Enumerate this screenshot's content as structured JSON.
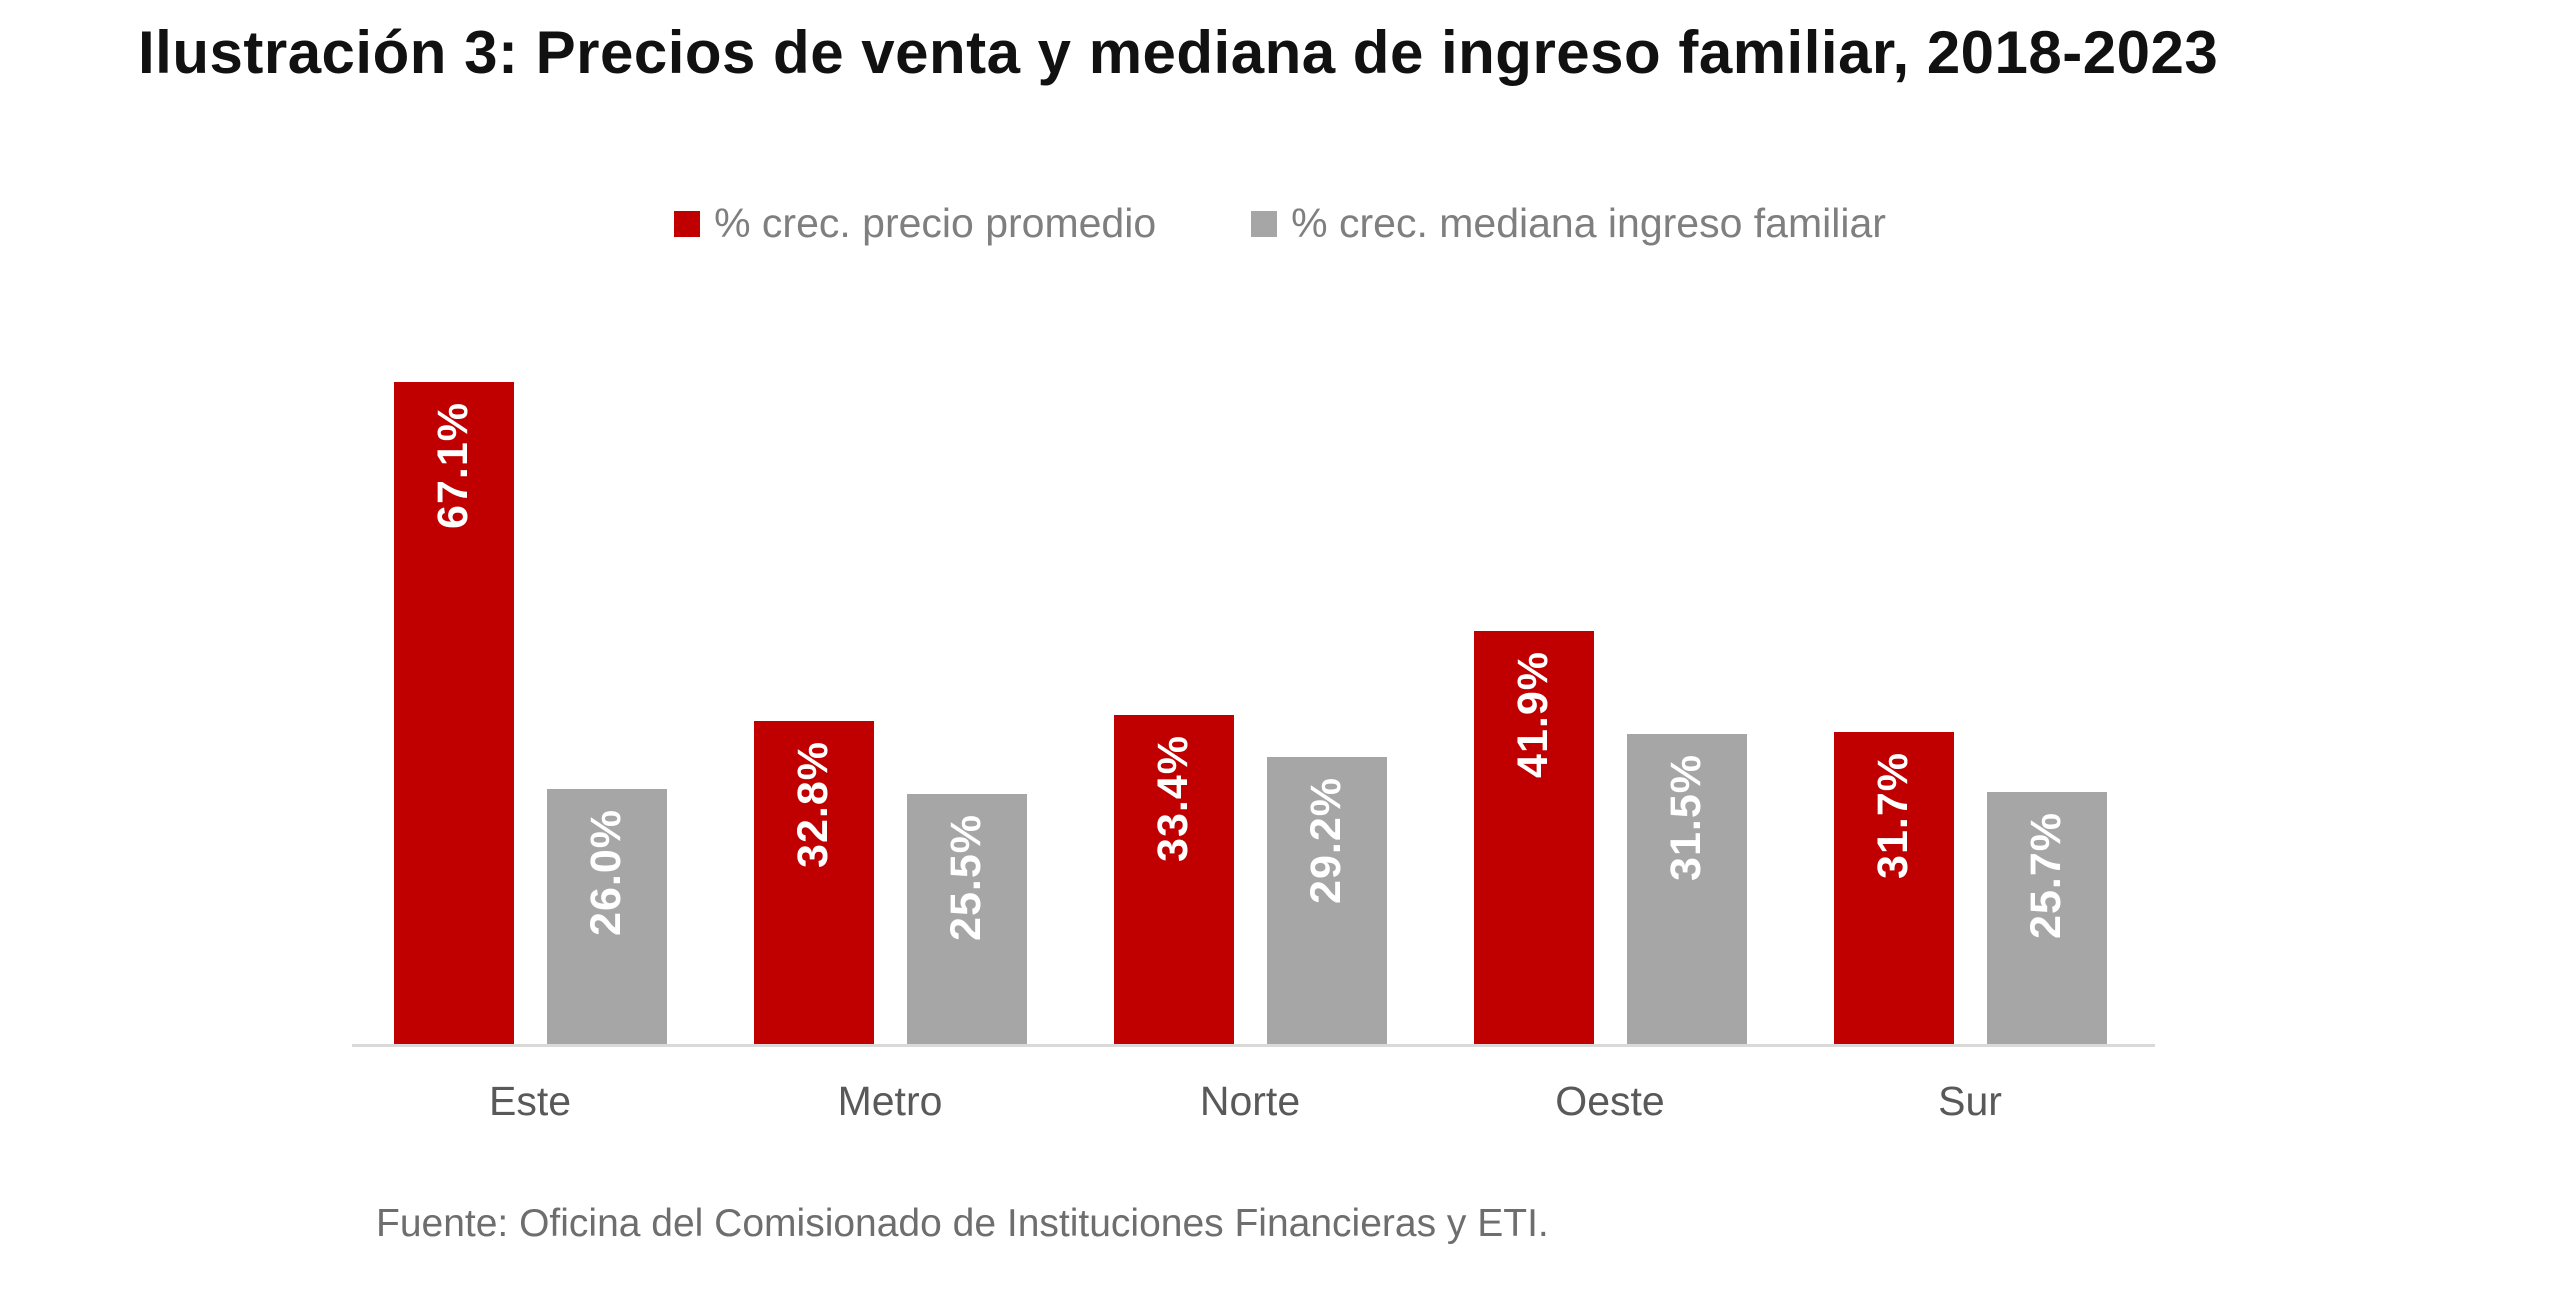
{
  "title": "Ilustración 3: Precios de venta y mediana de ingreso familiar, 2018-2023",
  "source_note": "Fuente: Oficina del Comisionado de Instituciones Financieras y ETI.",
  "colors": {
    "series_red": "#c00000",
    "series_gray": "#a6a6a6",
    "axis_line": "#d9d9d9",
    "title_text": "#111111",
    "legend_text": "#7f7f7f",
    "category_text": "#595959",
    "source_text": "#6e6e6e",
    "value_label_text": "#ffffff"
  },
  "chart_data": {
    "type": "bar",
    "title": "Ilustración 3: Precios de venta y mediana de ingreso familiar, 2018-2023",
    "categories": [
      "Este",
      "Metro",
      "Norte",
      "Oeste",
      "Sur"
    ],
    "series": [
      {
        "name": "% crec. precio promedio",
        "color": "#c00000",
        "values": [
          67.1,
          32.8,
          33.4,
          41.9,
          31.7
        ],
        "labels": [
          "67.1%",
          "32.8%",
          "33.4%",
          "41.9%",
          "31.7%"
        ]
      },
      {
        "name": "% crec. mediana ingreso familiar",
        "color": "#a6a6a6",
        "values": [
          26.0,
          25.5,
          29.2,
          31.5,
          25.7
        ],
        "labels": [
          "26.0%",
          "25.5%",
          "29.2%",
          "31.5%",
          "25.7%"
        ]
      }
    ],
    "xlabel": "",
    "ylabel": "",
    "ylim": [
      0,
      70
    ],
    "grid": false,
    "legend_position": "top",
    "value_labels_rotated": true,
    "source": "Fuente: Oficina del Comisionado de Instituciones Financieras y ETI."
  }
}
